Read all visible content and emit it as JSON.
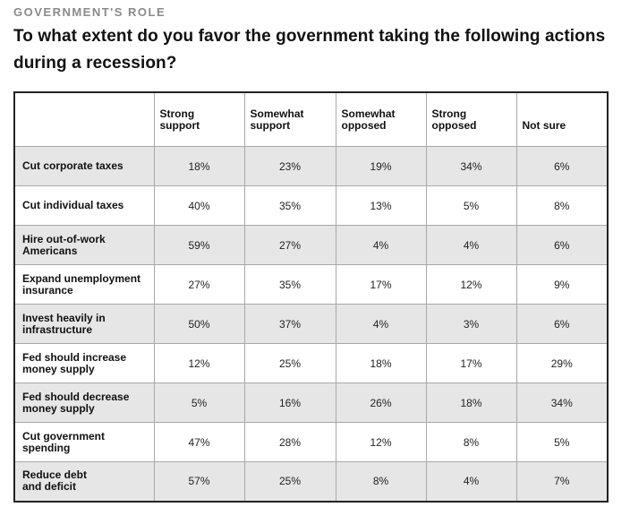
{
  "kicker": "GOVERNMENT'S ROLE",
  "title": "To what extent do you favor the government taking the following actions during a recession?",
  "table": {
    "columns": [
      {
        "line1": "Strong",
        "line2": "support"
      },
      {
        "line1": "Somewhat",
        "line2": "support"
      },
      {
        "line1": "Somewhat",
        "line2": "opposed"
      },
      {
        "line1": "Strong",
        "line2": "opposed"
      },
      {
        "line1": "Not sure",
        "line2": ""
      }
    ],
    "rows": [
      {
        "label1": "Cut corporate taxes",
        "label2": "",
        "values": [
          "18%",
          "23%",
          "19%",
          "34%",
          "6%"
        ]
      },
      {
        "label1": "Cut individual taxes",
        "label2": "",
        "values": [
          "40%",
          "35%",
          "13%",
          "5%",
          "8%"
        ]
      },
      {
        "label1": "Hire out-of-work",
        "label2": "Americans",
        "values": [
          "59%",
          "27%",
          "4%",
          "4%",
          "6%"
        ]
      },
      {
        "label1": "Expand unemployment",
        "label2": "insurance",
        "values": [
          "27%",
          "35%",
          "17%",
          "12%",
          "9%"
        ]
      },
      {
        "label1": "Invest heavily in",
        "label2": "infrastructure",
        "values": [
          "50%",
          "37%",
          "4%",
          "3%",
          "6%"
        ]
      },
      {
        "label1": "Fed should increase",
        "label2": "money supply",
        "values": [
          "12%",
          "25%",
          "18%",
          "17%",
          "29%"
        ]
      },
      {
        "label1": "Fed should decrease",
        "label2": "money supply",
        "values": [
          "5%",
          "16%",
          "26%",
          "18%",
          "34%"
        ]
      },
      {
        "label1": "Cut government",
        "label2": "spending",
        "values": [
          "47%",
          "28%",
          "12%",
          "8%",
          "5%"
        ]
      },
      {
        "label1": "Reduce debt",
        "label2": "and deficit",
        "values": [
          "57%",
          "25%",
          "8%",
          "4%",
          "7%"
        ]
      }
    ]
  }
}
